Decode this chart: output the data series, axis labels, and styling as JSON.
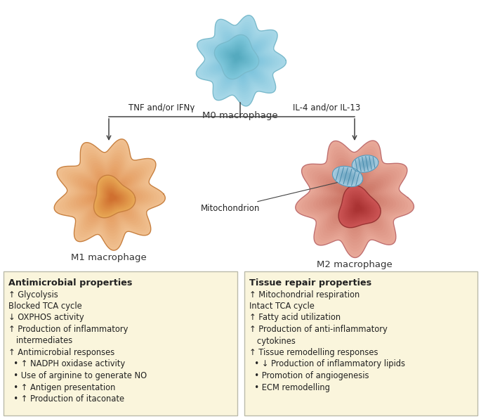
{
  "figure_bg": "#FFFFFF",
  "m0_label": "M0 macrophage",
  "m1_label": "M1 macrophage",
  "m2_label": "M2 macrophage",
  "arrow_left_label": "TNF and/or IFNγ",
  "arrow_right_label": "IL-4 and/or IL-13",
  "mitochondrion_label": "Mitochondrion",
  "box_bg": "#FAF5DC",
  "box_border": "#BBBBAA",
  "left_box_title": "Antimicrobial properties",
  "left_box_lines": [
    "↑ Glycolysis",
    "Blocked TCA cycle",
    "↓ OXPHOS activity",
    "↑ Production of inflammatory",
    "   intermediates",
    "↑ Antimicrobial responses",
    "  • ↑ NADPH oxidase activity",
    "  • Use of arginine to generate NO",
    "  • ↑ Antigen presentation",
    "  • ↑ Production of itaconate"
  ],
  "right_box_title": "Tissue repair properties",
  "right_box_lines": [
    "↑ Mitochondrial respiration",
    "Intact TCA cycle",
    "↑ Fatty acid utilization",
    "↑ Production of anti-inflammatory",
    "   cytokines",
    "↑ Tissue remodelling responses",
    "  • ↓ Production of inflammatory lipids",
    "  • Promotion of angiogenesis",
    "  • ECM remodelling"
  ],
  "m0_cell_outer": "#A8D8E8",
  "m0_cell_inner": "#70BDD8",
  "m0_nucleus_outer": "#80C8DC",
  "m0_nucleus_inner": "#55AABF",
  "m0_edge": "#7ABACC",
  "m1_cell_outer": "#F0C090",
  "m1_cell_inner": "#E09050",
  "m1_nucleus_outer": "#E8A855",
  "m1_nucleus_inner": "#D07030",
  "m1_edge": "#C88040",
  "m2_cell_outer": "#E8A898",
  "m2_cell_inner": "#C87060",
  "m2_nucleus_outer": "#CC5555",
  "m2_nucleus_inner": "#AA3333",
  "m2_mito_outer": "#A8CCE0",
  "m2_mito_inner": "#7AAEC8",
  "m2_edge": "#C07070",
  "line_color": "#444444",
  "text_color": "#222222",
  "label_color": "#333333"
}
